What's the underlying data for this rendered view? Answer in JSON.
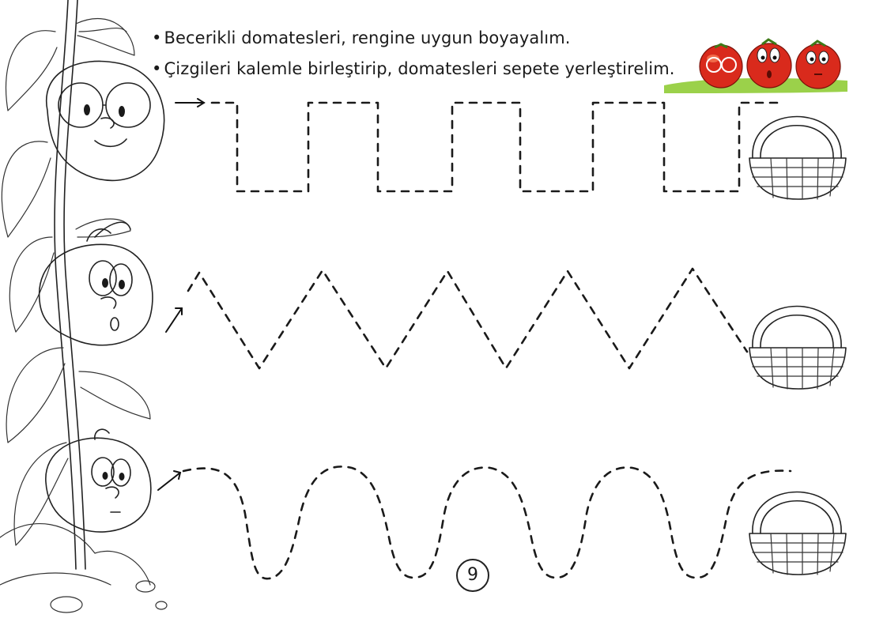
{
  "instructions": {
    "bullet": "•",
    "line1": "Becerikli domatesleri, rengine uygun boyayalım.",
    "line2": "Çizgileri kalemle birleştirip, domatesleri sepete yerleştirelim."
  },
  "page_number": "9",
  "colors": {
    "tomato_red": "#d92a1c",
    "tomato_highlight": "#f06a4a",
    "leaf_green": "#6aa82c",
    "grass_green": "#9bd14a",
    "ink": "#1a1a1a"
  },
  "illustrations": {
    "characters": [
      "tomato-with-glasses",
      "surprised-tomato",
      "worried-tomato"
    ],
    "baskets": 3,
    "trace_rows": [
      "square-wave",
      "zigzag",
      "curved-wave"
    ]
  }
}
